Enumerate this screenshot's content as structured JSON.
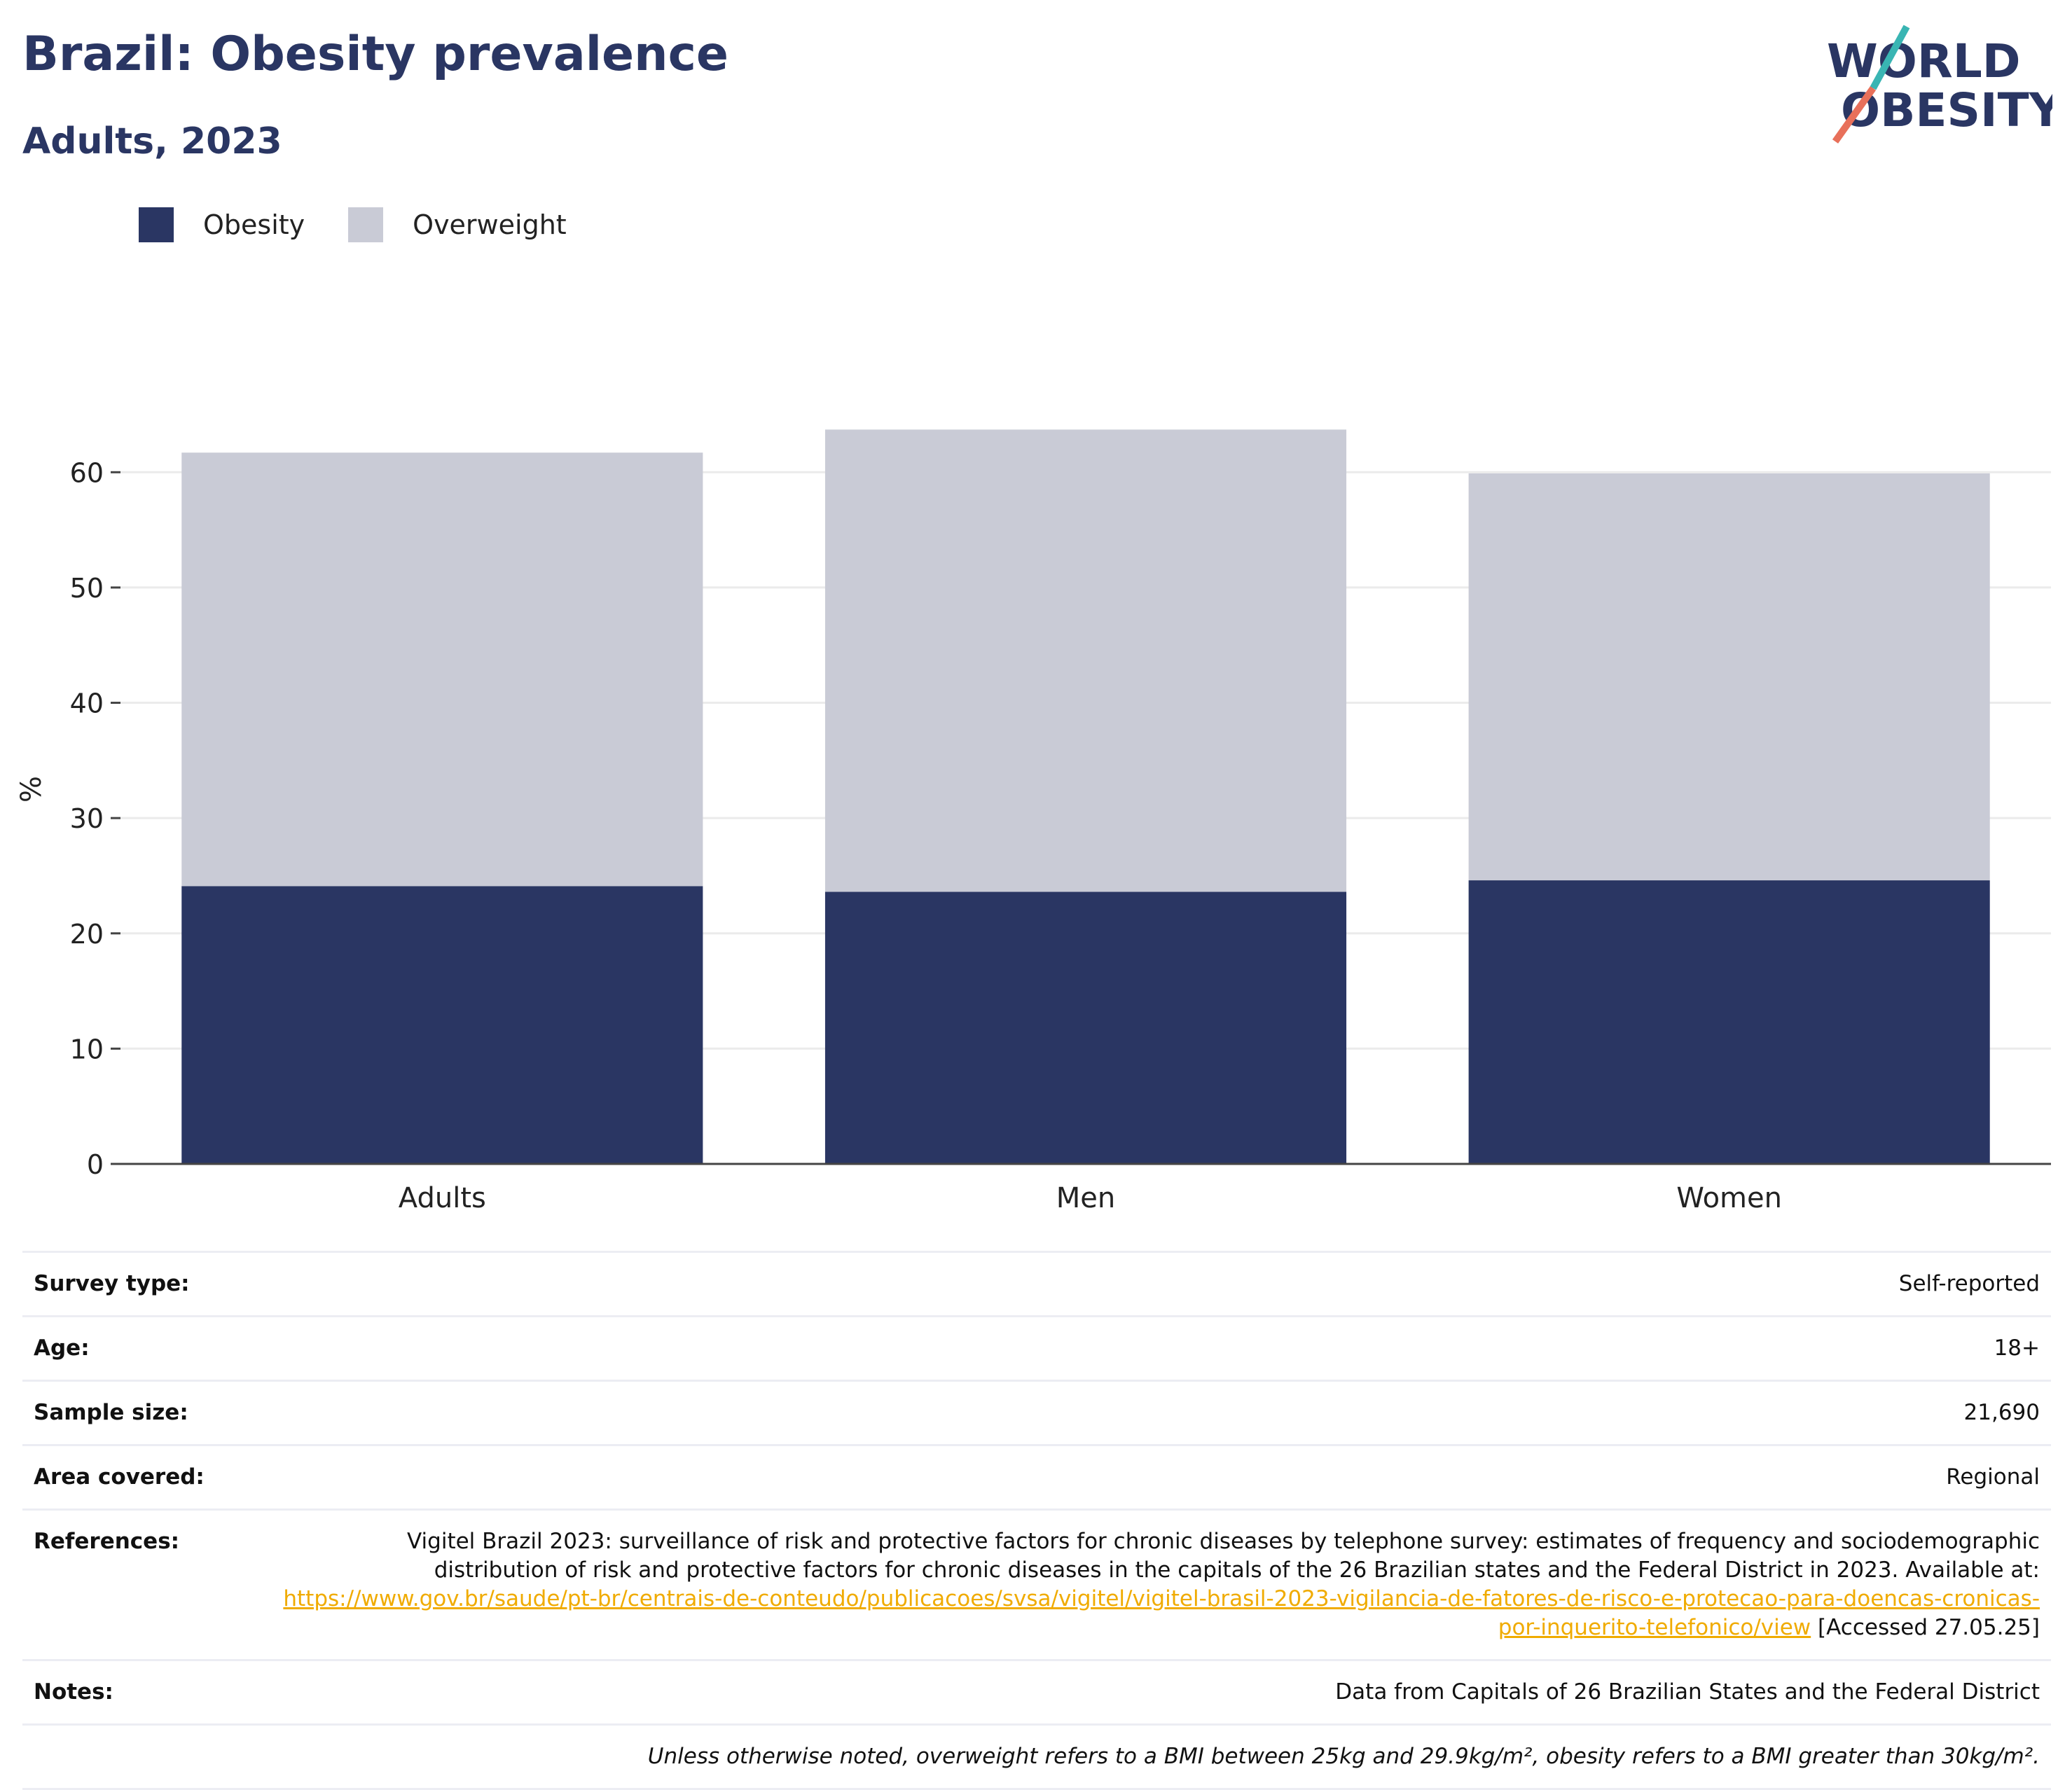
{
  "title": "Brazil: Obesity prevalence",
  "subtitle": "Adults, 2023",
  "logo": {
    "line1": "WORLD",
    "line2": "OBESITY"
  },
  "colors": {
    "obesity": "#2a3663",
    "overweight": "#c9cbd6",
    "accent_teal": "#39b5b3",
    "accent_coral": "#e8705a",
    "link": "#f0ab00"
  },
  "chart_data": {
    "type": "bar",
    "stacked": true,
    "categories": [
      "Adults",
      "Men",
      "Women"
    ],
    "series": [
      {
        "name": "Obesity",
        "values": [
          24.1,
          23.6,
          24.6
        ]
      },
      {
        "name": "Overweight",
        "values": [
          37.6,
          40.1,
          35.3
        ]
      }
    ],
    "ylabel": "%",
    "ylim": [
      0,
      65
    ],
    "yticks": [
      0,
      10,
      20,
      30,
      40,
      50,
      60
    ],
    "grid": true,
    "legend": "top-left"
  },
  "info": {
    "survey_type_label": "Survey type:",
    "survey_type": "Self-reported",
    "age_label": "Age:",
    "age": "18+",
    "sample_size_label": "Sample size:",
    "sample_size": "21,690",
    "area_label": "Area covered:",
    "area": "Regional",
    "references_label": "References:",
    "references_text": "Vigitel Brazil 2023: surveillance of risk and protective factors for chronic diseases by telephone survey: estimates of frequency and sociodemographic distribution of risk and protective factors for chronic diseases in the capitals of the 26 Brazilian states and the Federal District in 2023. Available at: ",
    "references_link": "https://www.gov.br/saude/pt-br/centrais-de-conteudo/publicacoes/svsa/vigitel/vigitel-brasil-2023-vigilancia-de-fatores-de-risco-e-protecao-para-doencas-cronicas-por-inquerito-telefonico/view",
    "references_accessed": " [Accessed 27.05.25]",
    "notes_label": "Notes:",
    "notes": "Data from Capitals of 26 Brazilian States and the Federal District",
    "footnote": "Unless otherwise noted, overweight refers to a BMI between 25kg and 29.9kg/m², obesity refers to a BMI greater than 30kg/m²."
  }
}
